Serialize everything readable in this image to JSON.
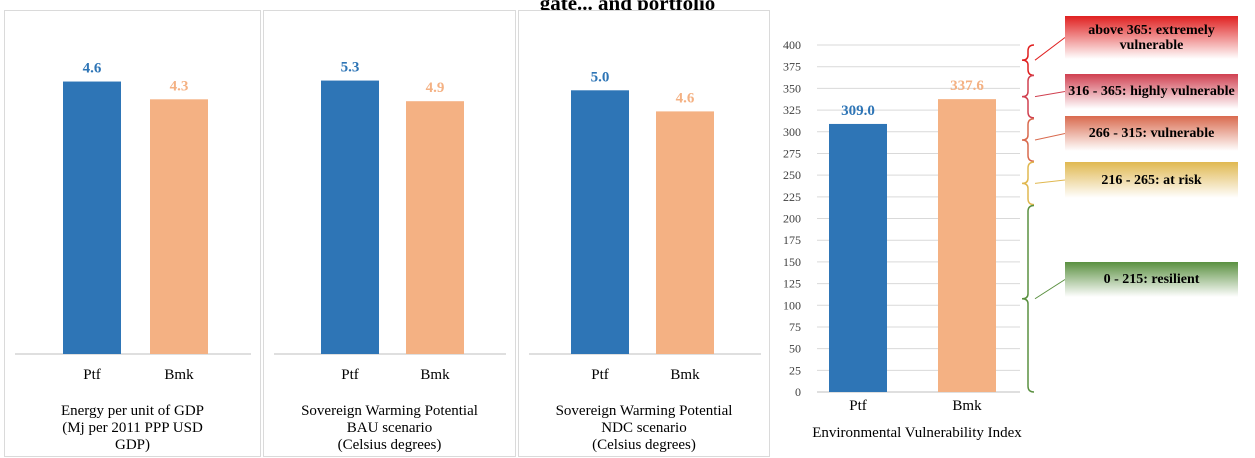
{
  "page_title": "gate... and portfolio",
  "colors": {
    "ptf": "#2e75b6",
    "bmk": "#f4b183",
    "axis": "#bfbfbf",
    "grid": "#d9d9d9"
  },
  "panels": [
    {
      "caption_lines": [
        "Energy per unit of GDP",
        "(Mj per 2011 PPP USD",
        "GDP)"
      ]
    },
    {
      "caption_lines": [
        "Sovereign Warming Potential",
        "BAU scenario",
        "(Celsius degrees)"
      ]
    },
    {
      "caption_lines": [
        "Sovereign Warming Potential",
        "NDC scenario",
        "(Celsius degrees)"
      ]
    },
    {
      "caption_lines": [
        "Environmental Vulnerability Index"
      ]
    }
  ],
  "legend": [
    {
      "label": "above 365: extremely vulnerable",
      "color": "#e02020",
      "from": 365,
      "to": 400
    },
    {
      "label": "316 - 365: highly vulnerable",
      "color": "#d04050",
      "from": 316,
      "to": 365
    },
    {
      "label": "266 - 315: vulnerable",
      "color": "#d96a4e",
      "from": 266,
      "to": 315
    },
    {
      "label": "216 - 265: at risk",
      "color": "#e0b850",
      "from": 216,
      "to": 265
    },
    {
      "label": "0 - 215: resilient",
      "color": "#5a9040",
      "from": 0,
      "to": 215
    }
  ],
  "chart_data": [
    {
      "type": "bar",
      "categories": [
        "Ptf",
        "Bmk"
      ],
      "values": [
        4.6,
        4.3
      ],
      "value_labels": [
        "4.6",
        "4.3"
      ],
      "ylim": [
        0,
        5.2
      ],
      "title": "",
      "xlabel": "Energy per unit of GDP (Mj per 2011 PPP USD GDP)",
      "ylabel": ""
    },
    {
      "type": "bar",
      "categories": [
        "Ptf",
        "Bmk"
      ],
      "values": [
        5.3,
        4.9
      ],
      "value_labels": [
        "5.3",
        "4.9"
      ],
      "ylim": [
        0,
        5.97
      ],
      "title": "",
      "xlabel": "Sovereign Warming Potential BAU scenario (Celsius degrees)",
      "ylabel": ""
    },
    {
      "type": "bar",
      "categories": [
        "Ptf",
        "Bmk"
      ],
      "values": [
        5.0,
        4.6
      ],
      "value_labels": [
        "5.0",
        "4.6"
      ],
      "ylim": [
        0,
        5.84
      ],
      "title": "",
      "xlabel": "Sovereign Warming Potential NDC scenario (Celsius degrees)",
      "ylabel": ""
    },
    {
      "type": "bar",
      "categories": [
        "Ptf",
        "Bmk"
      ],
      "values": [
        309.0,
        337.6
      ],
      "value_labels": [
        "309.0",
        "337.6"
      ],
      "ylim": [
        0,
        400
      ],
      "yticks": [
        0,
        25,
        50,
        75,
        100,
        125,
        150,
        175,
        200,
        225,
        250,
        275,
        300,
        325,
        350,
        375,
        400
      ],
      "grid": true,
      "title": "",
      "xlabel": "Environmental Vulnerability Index",
      "ylabel": ""
    }
  ]
}
